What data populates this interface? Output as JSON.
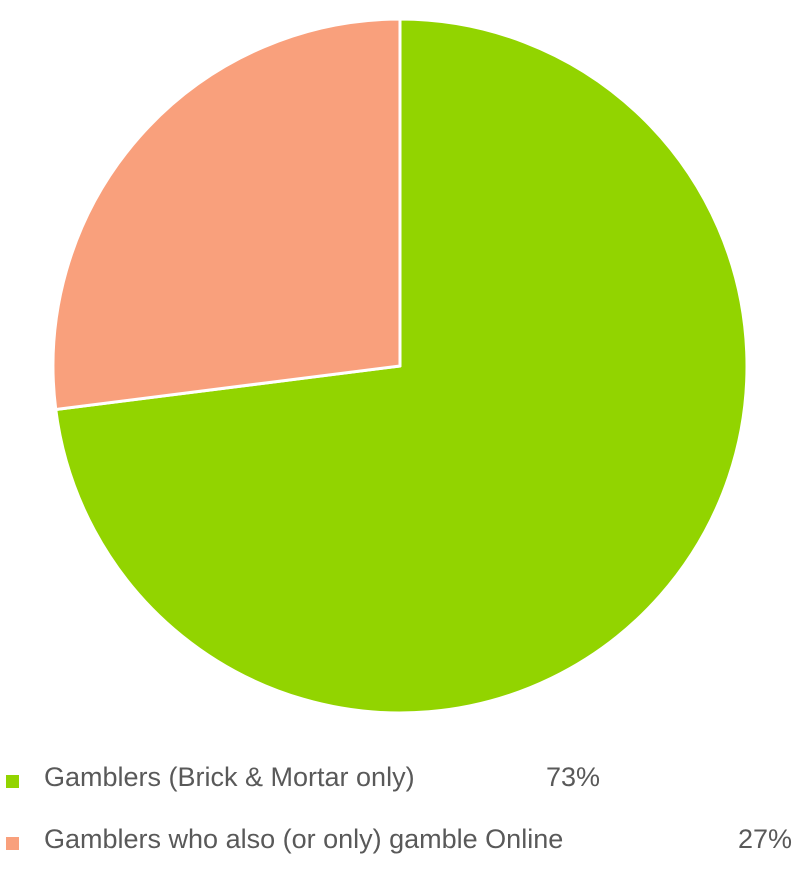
{
  "chart_data": {
    "type": "pie",
    "title": "",
    "slices": [
      {
        "label": "Gamblers (Brick & Mortar only)",
        "value": 73,
        "value_label": "73%",
        "color": "#92d400"
      },
      {
        "label": "Gamblers who also (or only) gamble Online",
        "value": 27,
        "value_label": "27%",
        "color": "#f9a07c"
      }
    ],
    "start_angle_deg": 0,
    "direction": "clockwise",
    "legend_position": "bottom",
    "slice_border_color": "#ffffff"
  }
}
